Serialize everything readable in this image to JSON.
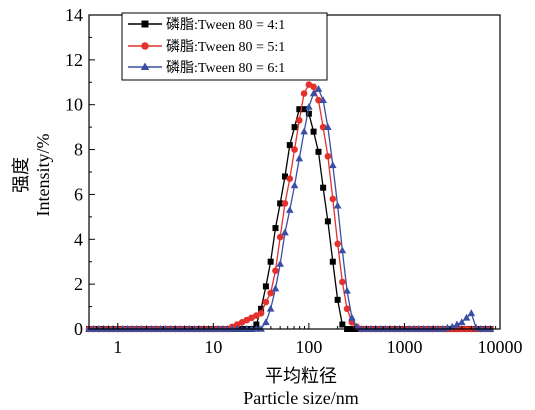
{
  "chart_data": {
    "type": "line",
    "title": "",
    "xlabel": "平均粒径",
    "xlabel_en": "Particle size/nm",
    "ylabel": "强度",
    "ylabel_en": "Intensity/%",
    "x_scale": "log",
    "xlim": [
      0.5,
      10000
    ],
    "ylim": [
      0,
      14
    ],
    "x_ticks": [
      {
        "value": 1,
        "label": "1"
      },
      {
        "value": 10,
        "label": "10"
      },
      {
        "value": 100,
        "label": "100"
      },
      {
        "value": 1000,
        "label": "1000"
      },
      {
        "value": 10000,
        "label": "10000"
      }
    ],
    "y_ticks": [
      {
        "value": 0,
        "label": "0"
      },
      {
        "value": 2,
        "label": "2"
      },
      {
        "value": 4,
        "label": "4"
      },
      {
        "value": 6,
        "label": "6"
      },
      {
        "value": 8,
        "label": "8"
      },
      {
        "value": 10,
        "label": "10"
      },
      {
        "value": 12,
        "label": "12"
      },
      {
        "value": 14,
        "label": "14"
      }
    ],
    "grid": false,
    "legend_position": "top-left",
    "series": [
      {
        "name": "磷脂:Tween 80 = 4:1",
        "color": "#000000",
        "marker": "square",
        "x": [
          0.5,
          0.56,
          0.63,
          0.71,
          0.8,
          0.89,
          1.0,
          1.12,
          1.26,
          1.41,
          1.58,
          1.78,
          2.0,
          2.24,
          2.51,
          2.82,
          3.16,
          3.55,
          3.98,
          4.47,
          5.01,
          5.62,
          6.31,
          7.08,
          7.94,
          8.91,
          10.0,
          11.2,
          12.6,
          14.1,
          15.8,
          17.8,
          20.0,
          22.4,
          25.1,
          28.2,
          31.6,
          35.5,
          39.8,
          44.7,
          50.1,
          56.2,
          63.1,
          70.8,
          79.4,
          89.1,
          100,
          112,
          126,
          141,
          158,
          178,
          200,
          224,
          251,
          282,
          316,
          355,
          398,
          447,
          501,
          562,
          631,
          708,
          794,
          891,
          1000,
          1122,
          1259,
          1413,
          1585,
          1778,
          1995,
          2239,
          2512,
          2818,
          3162,
          3548,
          3981,
          4467,
          5012,
          5623,
          6310,
          7079,
          7943
        ],
        "y": [
          0,
          0,
          0,
          0,
          0,
          0,
          0,
          0,
          0,
          0,
          0,
          0,
          0,
          0,
          0,
          0,
          0,
          0,
          0,
          0,
          0,
          0,
          0,
          0,
          0,
          0,
          0,
          0,
          0,
          0,
          0,
          0,
          0,
          0,
          0,
          0.2,
          0.9,
          1.9,
          3.0,
          4.5,
          5.6,
          6.8,
          8.2,
          9.0,
          9.8,
          9.8,
          9.6,
          8.8,
          7.9,
          6.3,
          4.8,
          3.0,
          1.3,
          0.2,
          0,
          0,
          0,
          0,
          0,
          0,
          0,
          0,
          0,
          0,
          0,
          0,
          0,
          0,
          0,
          0,
          0,
          0,
          0,
          0,
          0,
          0,
          0,
          0,
          0,
          0,
          0,
          0,
          0,
          0,
          0
        ]
      },
      {
        "name": "磷脂:Tween 80 = 5:1",
        "color": "#e4312b",
        "marker": "circle",
        "x": [
          0.5,
          0.56,
          0.63,
          0.71,
          0.8,
          0.89,
          1.0,
          1.12,
          1.26,
          1.41,
          1.58,
          1.78,
          2.0,
          2.24,
          2.51,
          2.82,
          3.16,
          3.55,
          3.98,
          4.47,
          5.01,
          5.62,
          6.31,
          7.08,
          7.94,
          8.91,
          10.0,
          11.2,
          12.6,
          14.1,
          15.8,
          17.8,
          20.0,
          22.4,
          25.1,
          28.2,
          31.6,
          35.5,
          39.8,
          44.7,
          50.1,
          56.2,
          63.1,
          70.8,
          79.4,
          89.1,
          100,
          112,
          126,
          141,
          158,
          178,
          200,
          224,
          251,
          282,
          316,
          355,
          398,
          447,
          501,
          562,
          631,
          708,
          794,
          891,
          1000,
          1122,
          1259,
          1413,
          1585,
          1778,
          1995,
          2239,
          2512,
          2818,
          3162,
          3548,
          3981,
          4467,
          5012,
          5623,
          6310,
          7079,
          7943
        ],
        "y": [
          0,
          0,
          0,
          0,
          0,
          0,
          0,
          0,
          0,
          0,
          0,
          0,
          0,
          0,
          0,
          0,
          0,
          0,
          0,
          0,
          0,
          0,
          0,
          0,
          0,
          0,
          0,
          0,
          0,
          0,
          0.1,
          0.2,
          0.3,
          0.4,
          0.5,
          0.6,
          0.7,
          1.2,
          1.6,
          2.6,
          4.1,
          5.6,
          6.7,
          8.0,
          9.3,
          10.5,
          10.9,
          10.8,
          10.2,
          9.0,
          7.7,
          5.8,
          3.8,
          2.1,
          0.9,
          0.3,
          0.1,
          0,
          0,
          0,
          0,
          0,
          0,
          0,
          0,
          0,
          0,
          0,
          0,
          0,
          0,
          0,
          0,
          0,
          0,
          0,
          0,
          0,
          0,
          0,
          0,
          0,
          0,
          0,
          0
        ]
      },
      {
        "name": "磷脂:Tween 80 = 6:1",
        "color": "#3a4fa3",
        "marker": "triangle",
        "x": [
          0.5,
          0.56,
          0.63,
          0.71,
          0.8,
          0.89,
          1.0,
          1.12,
          1.26,
          1.41,
          1.58,
          1.78,
          2.0,
          2.24,
          2.51,
          2.82,
          3.16,
          3.55,
          3.98,
          4.47,
          5.01,
          5.62,
          6.31,
          7.08,
          7.94,
          8.91,
          10.0,
          11.2,
          12.6,
          14.1,
          15.8,
          17.8,
          20.0,
          22.4,
          25.1,
          28.2,
          31.6,
          35.5,
          39.8,
          44.7,
          50.1,
          56.2,
          63.1,
          70.8,
          79.4,
          89.1,
          100,
          112,
          126,
          141,
          158,
          178,
          200,
          224,
          251,
          282,
          316,
          355,
          398,
          447,
          501,
          562,
          631,
          708,
          794,
          891,
          1000,
          1122,
          1259,
          1413,
          1585,
          1778,
          1995,
          2239,
          2512,
          2818,
          3162,
          3548,
          3981,
          4467,
          5012,
          5623,
          6310,
          7079,
          7943
        ],
        "y": [
          0,
          0,
          0,
          0,
          0,
          0,
          0,
          0,
          0,
          0,
          0,
          0,
          0,
          0,
          0,
          0,
          0,
          0,
          0,
          0,
          0,
          0,
          0,
          0,
          0,
          0,
          0,
          0,
          0,
          0,
          0,
          0,
          0,
          0,
          0,
          0,
          0,
          0.3,
          0.9,
          1.8,
          2.9,
          4.3,
          5.3,
          6.4,
          7.6,
          8.8,
          9.9,
          10.5,
          10.7,
          10.2,
          9.0,
          7.3,
          5.5,
          3.5,
          1.7,
          0.5,
          0.1,
          0,
          0,
          0,
          0,
          0,
          0,
          0,
          0,
          0,
          0,
          0,
          0,
          0,
          0,
          0,
          0,
          0,
          0,
          0.05,
          0.1,
          0.2,
          0.3,
          0.5,
          0.7,
          0.05,
          0,
          0,
          0
        ]
      }
    ]
  }
}
